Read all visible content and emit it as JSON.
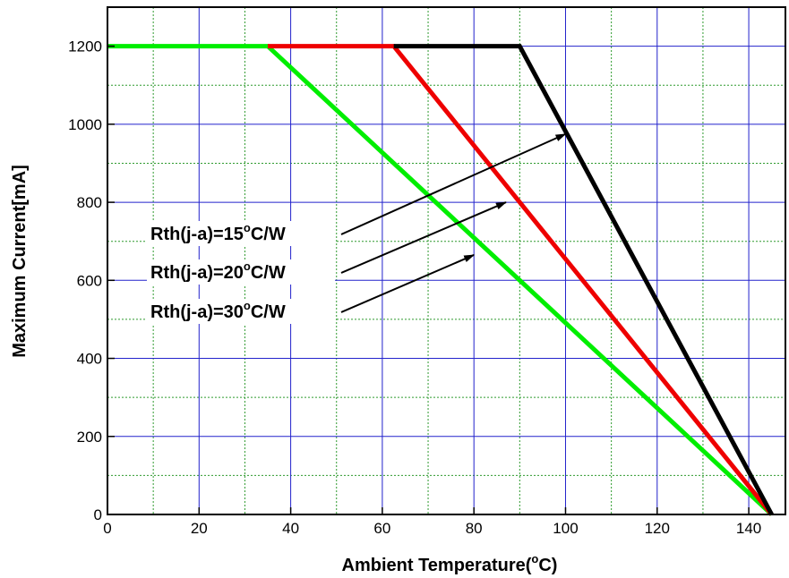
{
  "chart_data": {
    "type": "line",
    "xlabel_main": "Ambient Temperature(",
    "xlabel_sup": "o",
    "xlabel_tail": "C)",
    "ylabel": "Maximum Current[mA]",
    "xlim": [
      0,
      148
    ],
    "ylim": [
      0,
      1300
    ],
    "x_ticks": [
      0,
      20,
      40,
      60,
      80,
      100,
      120,
      140
    ],
    "y_ticks": [
      0,
      200,
      400,
      600,
      800,
      1000,
      1200
    ],
    "x_tick_labels": [
      "0",
      "20",
      "40",
      "60",
      "80",
      "100",
      "120",
      "140"
    ],
    "y_tick_labels": [
      "0",
      "200",
      "400",
      "600",
      "800",
      "1000",
      "1200"
    ],
    "grid": true,
    "series": [
      {
        "color": "#00ee00",
        "points": [
          [
            0,
            1200
          ],
          [
            35,
            1200
          ],
          [
            145,
            0
          ]
        ]
      },
      {
        "color": "#ee0000",
        "points": [
          [
            35,
            1200
          ],
          [
            62.5,
            1200
          ],
          [
            145,
            0
          ]
        ]
      },
      {
        "color": "#000000",
        "points": [
          [
            62.5,
            1200
          ],
          [
            90,
            1200
          ],
          [
            145,
            0
          ]
        ]
      }
    ],
    "annotations": [
      {
        "main": "Rth(j-a)=15",
        "sup": "o",
        "tail": "C/W",
        "target": [
          100,
          975
        ]
      },
      {
        "main": "Rth(j-a)=20",
        "sup": "o",
        "tail": "C/W",
        "target": [
          87,
          800
        ]
      },
      {
        "main": "Rth(j-a)=30",
        "sup": "o",
        "tail": "C/W",
        "target": [
          80,
          665
        ]
      }
    ]
  }
}
